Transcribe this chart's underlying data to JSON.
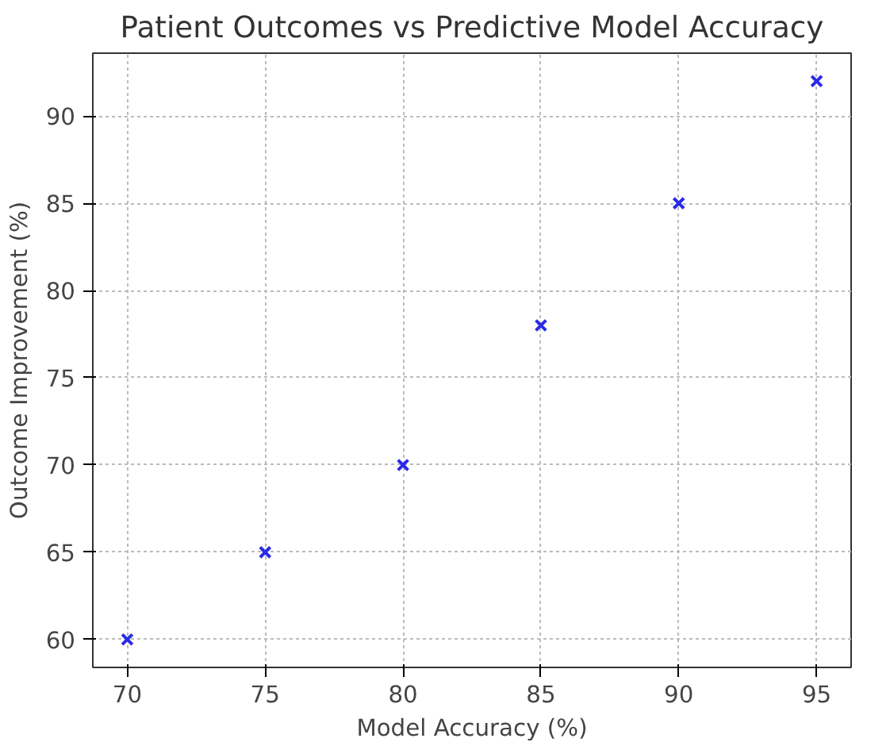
{
  "chart_data": {
    "type": "scatter",
    "title": "Patient Outcomes vs Predictive Model Accuracy",
    "xlabel": "Model Accuracy (%)",
    "ylabel": "Outcome Improvement (%)",
    "x": [
      70,
      75,
      80,
      85,
      90,
      95
    ],
    "series": [
      {
        "color": "#2a2ae8",
        "values": [
          60,
          65,
          70,
          78,
          85,
          92
        ]
      }
    ],
    "xlim": [
      68.75,
      96.25
    ],
    "ylim": [
      58.4,
      93.6
    ],
    "xticks": [
      70,
      75,
      80,
      85,
      90,
      95
    ],
    "yticks": [
      60,
      65,
      70,
      75,
      80,
      85,
      90
    ],
    "grid": true,
    "marker": "cross"
  }
}
